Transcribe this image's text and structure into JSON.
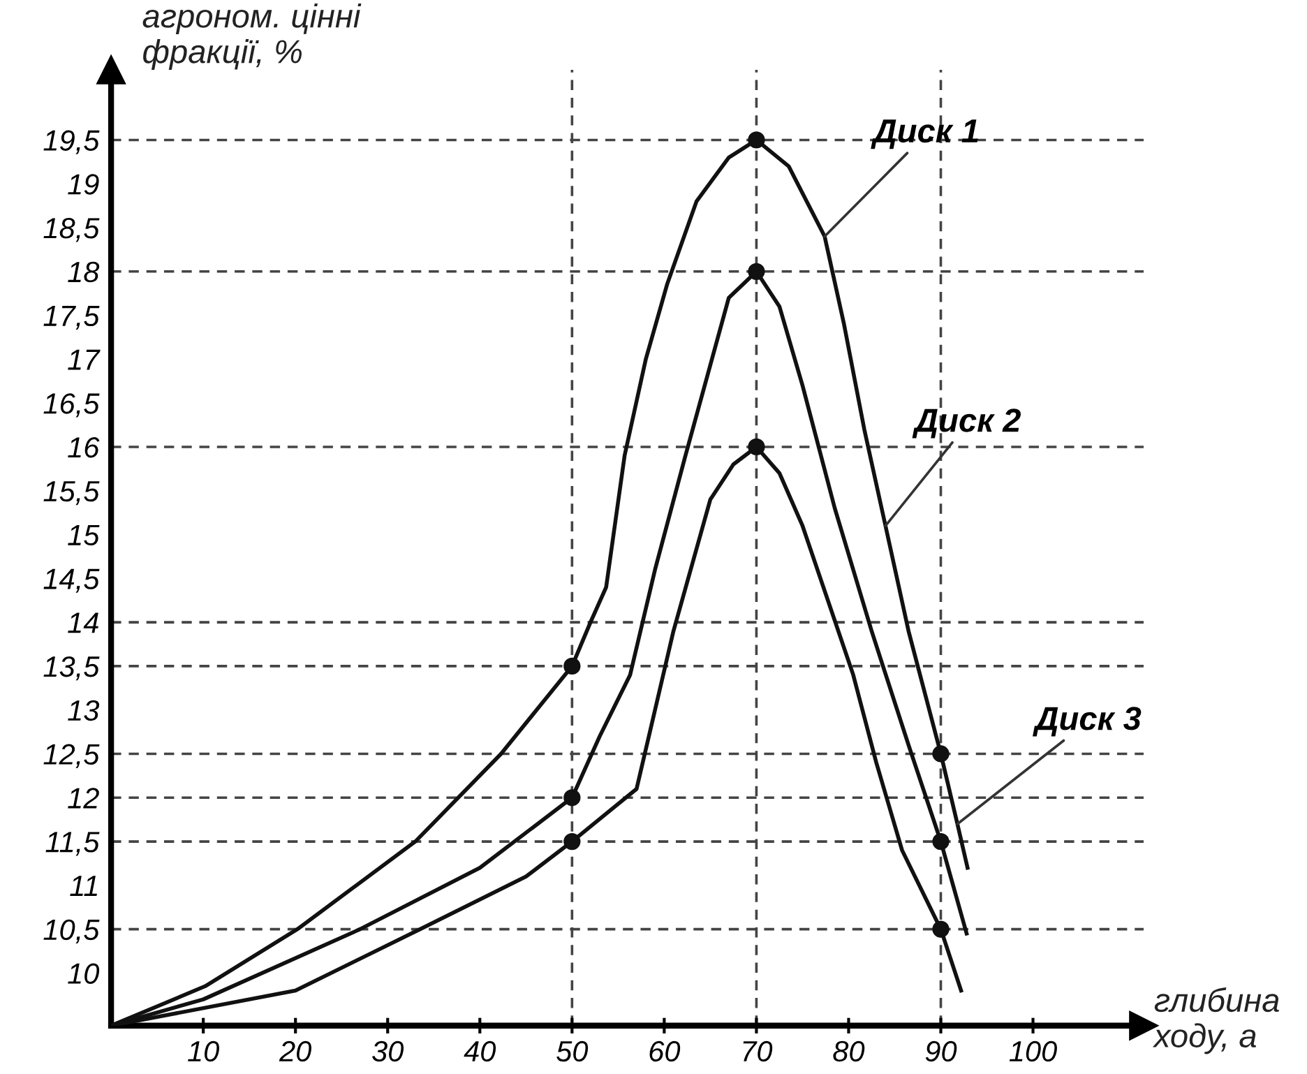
{
  "chart_data": {
    "type": "line",
    "xlabel": "глибина\nходу, а",
    "ylabel": "агроном. цінні\nфракції, %",
    "xlim": [
      0,
      112
    ],
    "ylim": [
      9.4,
      20.3
    ],
    "xticks": [
      10,
      20,
      30,
      40,
      50,
      60,
      70,
      80,
      90,
      100
    ],
    "yticks": [
      10,
      {
        "value": 10.5,
        "label": "10,5"
      },
      11,
      {
        "value": 11.5,
        "label": "11,5"
      },
      12,
      {
        "value": 12.5,
        "label": "12,5"
      },
      13,
      {
        "value": 13.5,
        "label": "13,5"
      },
      14,
      {
        "value": 14.5,
        "label": "14,5"
      },
      15,
      {
        "value": 15.5,
        "label": "15,5"
      },
      16,
      {
        "value": 16.5,
        "label": "16,5"
      },
      17,
      {
        "value": 17.5,
        "label": "17,5"
      },
      18,
      {
        "value": 18.5,
        "label": "18,5"
      },
      19,
      {
        "value": 19.5,
        "label": "19,5"
      }
    ],
    "grid": false,
    "legend": false,
    "line_style": "solid",
    "series": [
      {
        "marker": "none",
        "color": "#111111",
        "x": [
          0,
          10.2,
          20.2,
          33,
          42.3,
          50,
          52,
          53.7,
          55.7,
          58,
          60.3,
          63.5,
          67,
          70,
          73.5,
          77.4,
          79.5,
          81.7,
          84,
          86.5,
          90,
          91.8,
          92.9
        ],
        "values": [
          9.4,
          9.85,
          10.5,
          11.5,
          12.5,
          13.5,
          14,
          14.4,
          15.9,
          17,
          17.85,
          18.8,
          19.3,
          19.5,
          19.2,
          18.4,
          17.4,
          16.2,
          15.1,
          13.9,
          12.5,
          11.7,
          11.2
        ]
      },
      {
        "marker": "none",
        "color": "#111111",
        "x": [
          0,
          10,
          27,
          40,
          50,
          53,
          56.3,
          59,
          62.3,
          67,
          70,
          72.5,
          75,
          78.5,
          82.5,
          86.5,
          90,
          92.8
        ],
        "values": [
          9.4,
          9.7,
          10.5,
          11.2,
          12,
          12.7,
          13.4,
          14.6,
          15.9,
          17.7,
          18,
          17.6,
          16.7,
          15.3,
          13.9,
          12.6,
          11.5,
          10.45
        ]
      },
      {
        "marker": "none",
        "color": "#111111",
        "x": [
          0,
          20,
          33.5,
          45,
          50,
          53.5,
          57,
          61,
          65,
          67.5,
          70,
          72.5,
          75,
          80.5,
          83,
          85.8,
          90,
          92.2
        ],
        "values": [
          9.4,
          9.8,
          10.5,
          11.1,
          11.5,
          11.8,
          12.1,
          13.9,
          15.4,
          15.8,
          16,
          15.7,
          15.1,
          13.4,
          12.4,
          11.4,
          10.5,
          9.8
        ]
      },
      {
        "type": "scatter",
        "marker": "circle",
        "color": "#111111",
        "x": [
          50,
          50,
          50,
          70,
          70,
          70,
          90,
          90,
          90
        ],
        "values": [
          13.5,
          12,
          11.5,
          19.5,
          18,
          16,
          12.5,
          11.5,
          10.5
        ]
      }
    ],
    "ref_lines": [
      {
        "axis": "y",
        "value": 10.5,
        "line_style": "dashed",
        "color": "#444444"
      },
      {
        "axis": "y",
        "value": 11.5,
        "line_style": "dashed",
        "color": "#444444"
      },
      {
        "axis": "y",
        "value": 12,
        "line_style": "dashed",
        "color": "#444444"
      },
      {
        "axis": "y",
        "value": 12.5,
        "line_style": "dashed",
        "color": "#444444"
      },
      {
        "axis": "y",
        "value": 13.5,
        "line_style": "dashed",
        "color": "#444444"
      },
      {
        "axis": "y",
        "value": 14,
        "line_style": "dashed",
        "color": "#444444"
      },
      {
        "axis": "y",
        "value": 16,
        "line_style": "dashed",
        "color": "#444444"
      },
      {
        "axis": "y",
        "value": 18,
        "line_style": "dashed",
        "color": "#444444"
      },
      {
        "axis": "y",
        "value": 19.5,
        "line_style": "dashed",
        "color": "#444444"
      },
      {
        "axis": "x",
        "value": 50,
        "line_style": "dashed",
        "color": "#444444"
      },
      {
        "axis": "x",
        "value": 70,
        "line_style": "dashed",
        "color": "#444444"
      },
      {
        "axis": "x",
        "value": 90,
        "line_style": "dashed",
        "color": "#444444"
      }
    ],
    "annotations": [
      {
        "text": "Диск 1",
        "x": 77.4,
        "y": 18.4
      },
      {
        "text": "Диск 2",
        "x": 84,
        "y": 15.1
      },
      {
        "text": "Диск 3",
        "x": 91.8,
        "y": 11.7
      }
    ]
  }
}
